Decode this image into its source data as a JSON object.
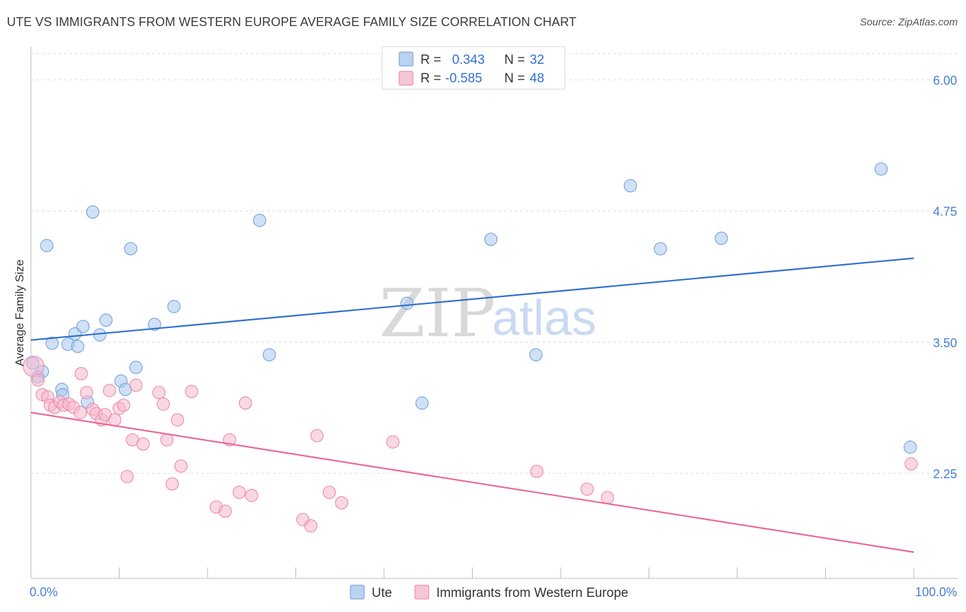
{
  "header": {
    "title": "UTE VS IMMIGRANTS FROM WESTERN EUROPE AVERAGE FAMILY SIZE CORRELATION CHART",
    "source": "Source: ZipAtlas.com"
  },
  "watermark": {
    "zip": "ZIP",
    "atlas": "atlas"
  },
  "colors": {
    "ute": "#a9c8ef",
    "ute_stroke": "#7aa6e0",
    "ute_line": "#2f6fcf",
    "imm": "#f5b8cc",
    "imm_stroke": "#ec8fae",
    "imm_line": "#e8689a",
    "grid": "#dcdcdc",
    "tick_label": "#4a7fd0"
  },
  "legend": {
    "rows": [
      {
        "r_label": "R = ",
        "r_value": "0.343",
        "n_label": "N = ",
        "n_value": "32"
      },
      {
        "r_label": "R = ",
        "r_value": "-0.585",
        "n_label": "N = ",
        "n_value": "48"
      }
    ]
  },
  "chart_data": {
    "type": "scatter",
    "xlabel": "",
    "ylabel": "Average Family Size",
    "xlim": [
      0,
      100
    ],
    "ylim": [
      1.25,
      6.25
    ],
    "x_tick_labels": [
      "0.0%",
      "100.0%"
    ],
    "y_ticks": [
      2.25,
      3.5,
      4.75,
      6.0
    ],
    "y_tick_labels": [
      "2.25",
      "3.50",
      "4.75",
      "6.00"
    ],
    "grid": true,
    "legend_position": "bottom",
    "series": [
      {
        "name": "Ute",
        "trend": {
          "x": [
            0,
            100
          ],
          "y": [
            3.52,
            4.3
          ]
        },
        "points": [
          [
            0.2,
            3.3
          ],
          [
            0.8,
            3.17
          ],
          [
            1.3,
            3.22
          ],
          [
            1.8,
            4.42
          ],
          [
            2.4,
            3.49
          ],
          [
            3.5,
            3.05
          ],
          [
            3.6,
            3.0
          ],
          [
            4.2,
            3.48
          ],
          [
            5.0,
            3.58
          ],
          [
            5.3,
            3.46
          ],
          [
            5.9,
            3.65
          ],
          [
            6.4,
            2.93
          ],
          [
            7.0,
            4.74
          ],
          [
            7.8,
            3.57
          ],
          [
            8.5,
            3.71
          ],
          [
            10.2,
            3.13
          ],
          [
            10.7,
            3.05
          ],
          [
            11.3,
            4.39
          ],
          [
            11.9,
            3.26
          ],
          [
            14.0,
            3.67
          ],
          [
            16.2,
            3.84
          ],
          [
            25.9,
            4.66
          ],
          [
            27.0,
            3.38
          ],
          [
            42.6,
            3.87
          ],
          [
            44.3,
            2.92
          ],
          [
            52.1,
            4.48
          ],
          [
            57.2,
            3.38
          ],
          [
            67.9,
            4.99
          ],
          [
            71.3,
            4.39
          ],
          [
            78.2,
            4.49
          ],
          [
            96.3,
            5.15
          ],
          [
            99.6,
            2.5
          ]
        ]
      },
      {
        "name": "Immigrants from Western Europe",
        "trend": {
          "x": [
            0,
            100
          ],
          "y": [
            2.83,
            1.5
          ]
        },
        "points": [
          [
            0.3,
            3.27
          ],
          [
            0.8,
            3.14
          ],
          [
            1.3,
            3.0
          ],
          [
            1.9,
            2.98
          ],
          [
            2.2,
            2.9
          ],
          [
            2.7,
            2.88
          ],
          [
            3.3,
            2.93
          ],
          [
            3.7,
            2.9
          ],
          [
            4.3,
            2.91
          ],
          [
            4.8,
            2.88
          ],
          [
            5.6,
            2.83
          ],
          [
            5.7,
            3.2
          ],
          [
            6.3,
            3.02
          ],
          [
            7.0,
            2.86
          ],
          [
            7.4,
            2.82
          ],
          [
            8.0,
            2.76
          ],
          [
            8.4,
            2.81
          ],
          [
            8.9,
            3.04
          ],
          [
            9.5,
            2.76
          ],
          [
            10.0,
            2.87
          ],
          [
            10.5,
            2.9
          ],
          [
            10.9,
            2.22
          ],
          [
            11.5,
            2.57
          ],
          [
            11.9,
            3.09
          ],
          [
            12.7,
            2.53
          ],
          [
            14.5,
            3.02
          ],
          [
            15.0,
            2.91
          ],
          [
            15.4,
            2.57
          ],
          [
            16.0,
            2.15
          ],
          [
            16.6,
            2.76
          ],
          [
            17.0,
            2.32
          ],
          [
            18.2,
            3.03
          ],
          [
            21.0,
            1.93
          ],
          [
            22.0,
            1.89
          ],
          [
            22.5,
            2.57
          ],
          [
            23.6,
            2.07
          ],
          [
            24.3,
            2.92
          ],
          [
            25.0,
            2.04
          ],
          [
            30.8,
            1.81
          ],
          [
            31.7,
            1.75
          ],
          [
            32.4,
            2.61
          ],
          [
            33.8,
            2.07
          ],
          [
            35.2,
            1.97
          ],
          [
            41.0,
            2.55
          ],
          [
            57.3,
            2.27
          ],
          [
            63.0,
            2.1
          ],
          [
            65.3,
            2.02
          ],
          [
            99.7,
            2.34
          ]
        ]
      }
    ]
  }
}
